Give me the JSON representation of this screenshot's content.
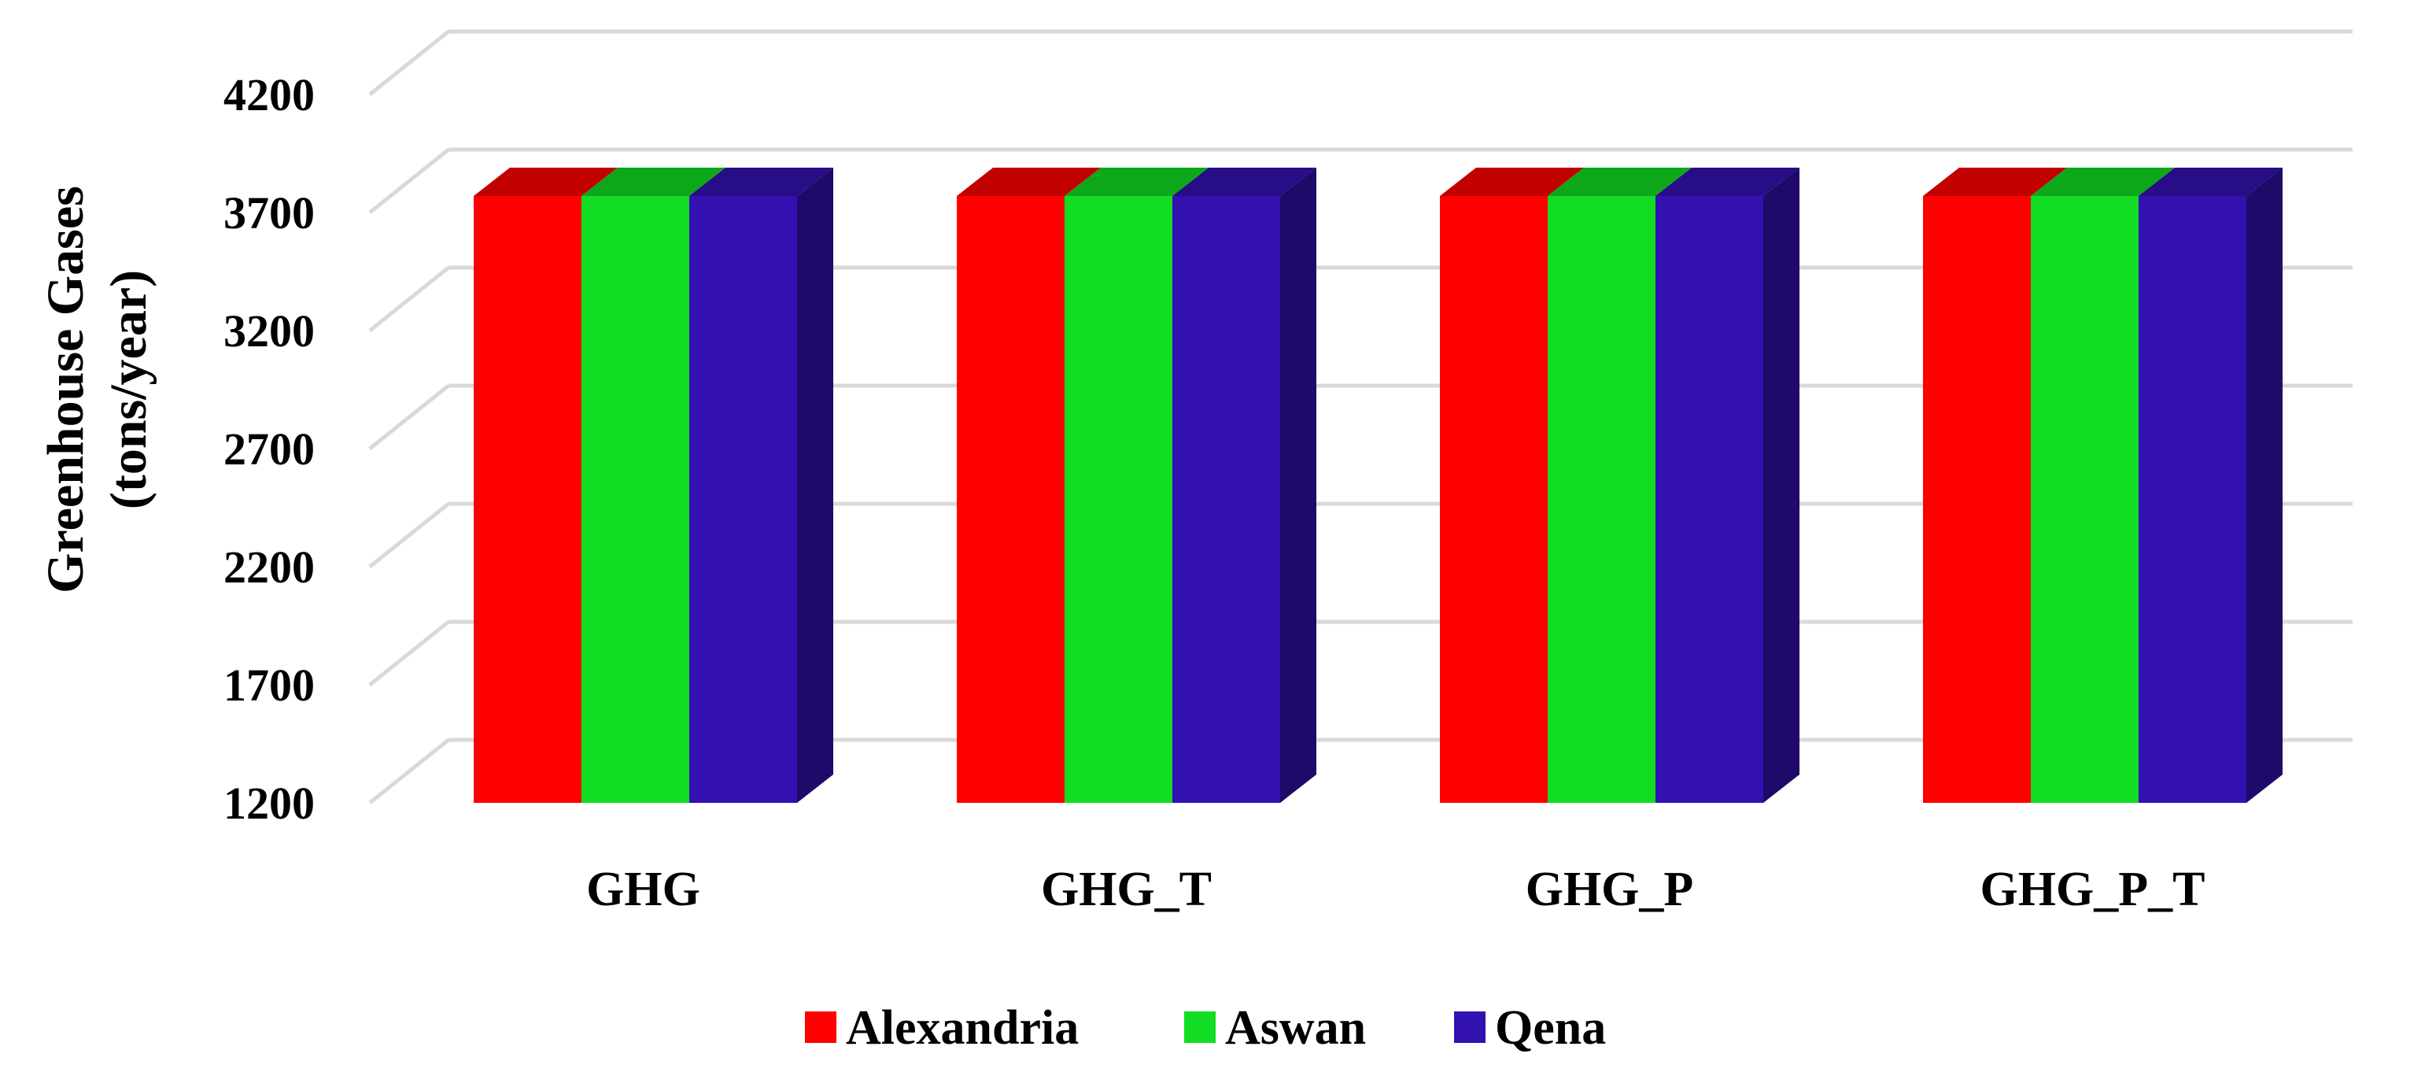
{
  "chart_data": {
    "type": "bar",
    "style": "3d-clustered",
    "title": "",
    "xlabel": "",
    "ylabel": [
      "Greenhouse Gases",
      "(tons/year)"
    ],
    "ylim": [
      1200,
      4700
    ],
    "yticks": [
      1200,
      1700,
      2200,
      2700,
      3200,
      3700,
      4200
    ],
    "grid": true,
    "legend_position": "bottom",
    "categories": [
      "GHG",
      "GHG_T",
      "GHG_P",
      "GHG_P_T"
    ],
    "series": [
      {
        "name": "Alexandria",
        "color": "#ff0000",
        "values": [
          3770,
          3770,
          3770,
          3770
        ]
      },
      {
        "name": "Aswan",
        "color": "#11dd22",
        "values": [
          3770,
          3770,
          3770,
          3770
        ]
      },
      {
        "name": "Qena",
        "color": "#3311b0",
        "values": [
          3770,
          3770,
          3770,
          3770
        ]
      }
    ]
  }
}
